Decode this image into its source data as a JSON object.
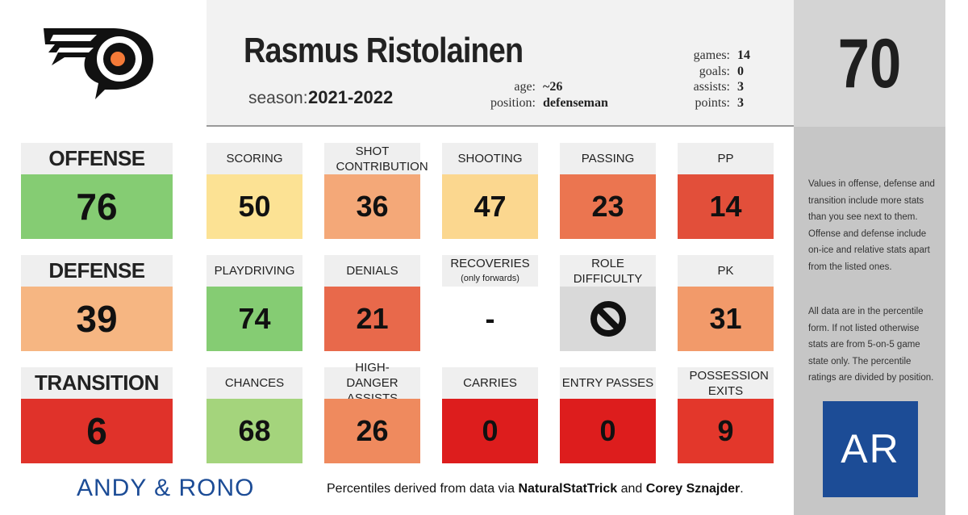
{
  "player": {
    "name": "Rasmus Ristolainen",
    "season_label": "season:",
    "season": "2021-2022",
    "age_label": "age:",
    "age": "~26",
    "position_label": "position:",
    "position": "defenseman",
    "games_label": "games:",
    "games": "14",
    "goals_label": "goals:",
    "goals": "0",
    "assists_label": "assists:",
    "assists": "3",
    "points_label": "points:",
    "points": "3"
  },
  "overall": "70",
  "team_logo": "flyers-logo",
  "categories": [
    {
      "label": "OFFENSE",
      "value": "76",
      "color": "#85cc73",
      "cards": [
        {
          "label": "SCORING",
          "sub": "",
          "value": "50",
          "color": "#fce294"
        },
        {
          "label": "SHOT CONTRIBUTION",
          "sub": "",
          "value": "36",
          "color": "#f4a878"
        },
        {
          "label": "SHOOTING",
          "sub": "",
          "value": "47",
          "color": "#fbd78f"
        },
        {
          "label": "PASSING",
          "sub": "",
          "value": "23",
          "color": "#eb7550"
        },
        {
          "label": "PP",
          "sub": "",
          "value": "14",
          "color": "#e24f3a"
        }
      ]
    },
    {
      "label": "DEFENSE",
      "value": "39",
      "color": "#f6b682",
      "cards": [
        {
          "label": "PLAYDRIVING",
          "sub": "",
          "value": "74",
          "color": "#85cc73"
        },
        {
          "label": "DENIALS",
          "sub": "",
          "value": "21",
          "color": "#e8694b"
        },
        {
          "label": "RECOVERIES",
          "sub": "(only forwards)",
          "value": "-",
          "color": "#ffffff"
        },
        {
          "label": "ROLE DIFFICULTY",
          "sub": "",
          "value": "",
          "color": "#d9d9d9",
          "icon": "prohibited-icon"
        },
        {
          "label": "PK",
          "sub": "",
          "value": "31",
          "color": "#f29a6a"
        }
      ]
    },
    {
      "label": "TRANSITION",
      "value": "6",
      "color": "#e0322a",
      "cards": [
        {
          "label": "CHANCES",
          "sub": "",
          "value": "68",
          "color": "#a4d47c"
        },
        {
          "label": "HIGH-DANGER ASSISTS",
          "sub": "",
          "value": "26",
          "color": "#ef8a5e"
        },
        {
          "label": "CARRIES",
          "sub": "",
          "value": "0",
          "color": "#dd1d1d"
        },
        {
          "label": "ENTRY PASSES",
          "sub": "",
          "value": "0",
          "color": "#dd1d1d"
        },
        {
          "label": "POSSESSION EXITS",
          "sub": "",
          "value": "9",
          "color": "#e3372b"
        }
      ]
    }
  ],
  "notes": {
    "note1": "Values in offense, defense and transition include more stats than you see next to them. Offense and defense include on-ice and relative stats apart from the listed ones.",
    "note2": "All data are in the percentile form. If not listed otherwise stats are from 5-on-5 game state only. The percentile ratings are divided by position."
  },
  "footer": {
    "brand": "ANDY & RONO",
    "note_prefix": "Percentiles derived from data via ",
    "source1": "NaturalStatTrick",
    "note_and": " and ",
    "source2": "Corey Sznajder",
    "note_suffix": "."
  },
  "ar_logo_text": "AR"
}
